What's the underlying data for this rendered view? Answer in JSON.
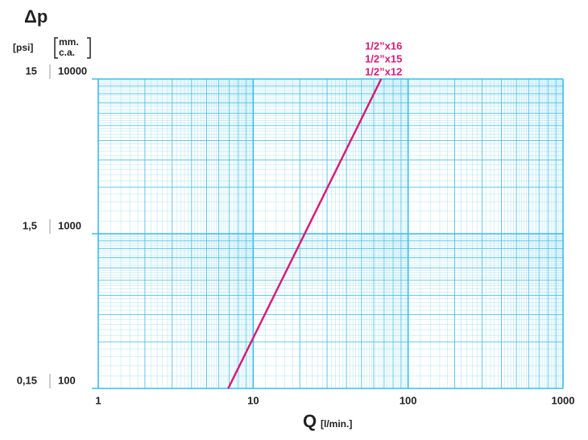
{
  "chart_data": {
    "type": "line",
    "title": "Δp",
    "x_label": "Q",
    "x_unit": "[l/min.]",
    "y_label": [
      "mm.",
      "c.a."
    ],
    "y2_label": "[psi]",
    "x": [
      6.9,
      67
    ],
    "series": [
      {
        "name": "1/2”x16",
        "color": "#d81b7a",
        "values": [
          100,
          10000
        ]
      },
      {
        "name": "1/2”x15",
        "color": "#d81b7a",
        "values": [
          100,
          10000
        ]
      },
      {
        "name": "1/2”x12",
        "color": "#d81b7a",
        "values": [
          100,
          10000
        ]
      }
    ],
    "xlim": [
      1,
      1000
    ],
    "xticks": [
      1,
      10,
      100,
      1000
    ],
    "xlog": true,
    "ylim": [
      100,
      10000
    ],
    "yticks": [
      100,
      1000,
      10000
    ],
    "ylog": true,
    "y2lim": [
      0.15,
      15
    ],
    "y2ticks": [
      {
        "value": 0.15,
        "label": "0,15"
      },
      {
        "value": 1.5,
        "label": "1,5"
      },
      15
    ],
    "grid": true,
    "grid_color": "#3bbde6"
  }
}
